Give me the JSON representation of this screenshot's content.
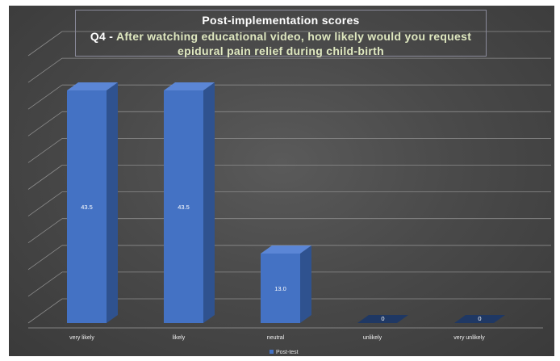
{
  "chart_data": {
    "type": "bar",
    "title": "Post-implementation scores",
    "subtitle_prefix": "Q4 - ",
    "subtitle": "After watching educational video, how likely would you request epidural pain relief during child-birth",
    "categories": [
      "very likely",
      "likely",
      "neutral",
      "unlikely",
      "very unlikely"
    ],
    "series": [
      {
        "name": "Post-test",
        "values": [
          43.5,
          43.5,
          13.0,
          0,
          0
        ]
      }
    ],
    "value_labels": [
      "43.5",
      "43.5",
      "13.0",
      "0",
      "0"
    ],
    "ylim": [
      0,
      50
    ],
    "grid": true,
    "legend_position": "bottom"
  },
  "colors": {
    "bar_front": "#4472c4",
    "bar_side": "#2f528f",
    "bar_top": "#5b86d6",
    "gridline": "#8c8c8c"
  }
}
